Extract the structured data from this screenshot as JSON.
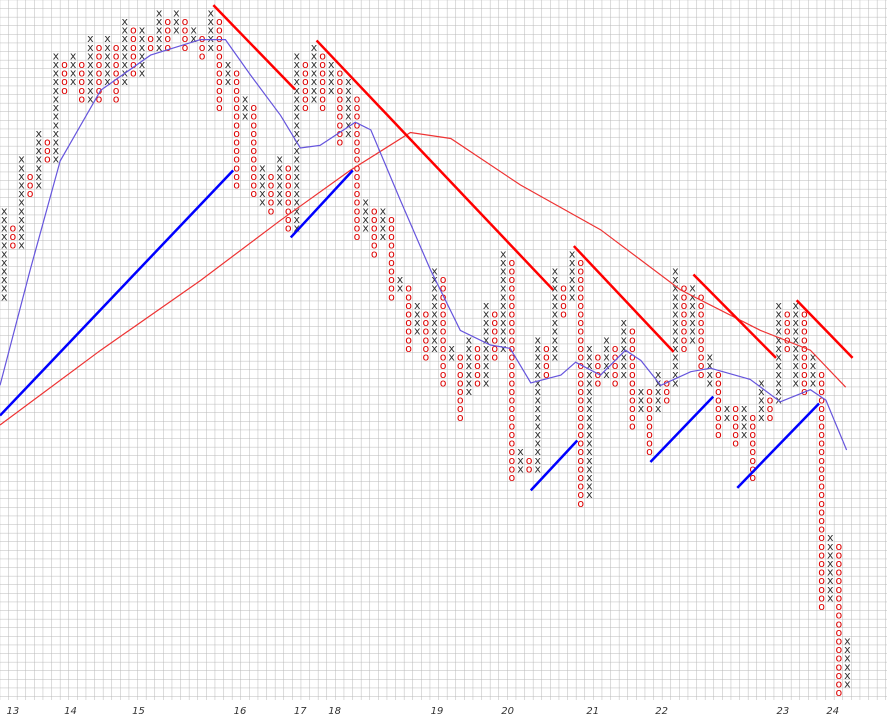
{
  "chart_data": {
    "type": "point-and-figure",
    "xlim": [
      -0.5,
      102.6
    ],
    "ylim": [
      0,
      84.5
    ],
    "symbol_colors": {
      "x": "#333333",
      "o": "#dd0000"
    },
    "columns": [
      {
        "kind": "x",
        "low": 50,
        "high": 60
      },
      {
        "kind": "o",
        "low": 56,
        "high": 58
      },
      {
        "kind": "x",
        "low": 56,
        "high": 66
      },
      {
        "kind": "o",
        "low": 62,
        "high": 64
      },
      {
        "kind": "x",
        "low": 63,
        "high": 69
      },
      {
        "kind": "o",
        "low": 66,
        "high": 68
      },
      {
        "kind": "x",
        "low": 66,
        "high": 78
      },
      {
        "kind": "o",
        "low": 74,
        "high": 77
      },
      {
        "kind": "x",
        "low": 75,
        "high": 78
      },
      {
        "kind": "o",
        "low": 73,
        "high": 77
      },
      {
        "kind": "x",
        "low": 73,
        "high": 80
      },
      {
        "kind": "o",
        "low": 73,
        "high": 79
      },
      {
        "kind": "x",
        "low": 75,
        "high": 80
      },
      {
        "kind": "o",
        "low": 73,
        "high": 79
      },
      {
        "kind": "x",
        "low": 75,
        "high": 82
      },
      {
        "kind": "o",
        "low": 76,
        "high": 81
      },
      {
        "kind": "x",
        "low": 76,
        "high": 81
      },
      {
        "kind": "o",
        "low": 79,
        "high": 80
      },
      {
        "kind": "x",
        "low": 79,
        "high": 83
      },
      {
        "kind": "o",
        "low": 79,
        "high": 82
      },
      {
        "kind": "x",
        "low": 81,
        "high": 83
      },
      {
        "kind": "o",
        "low": 79,
        "high": 82
      },
      {
        "kind": "x",
        "low": 80,
        "high": 81
      },
      {
        "kind": "o",
        "low": 78,
        "high": 80
      },
      {
        "kind": "x",
        "low": 79,
        "high": 83
      },
      {
        "kind": "o",
        "low": 72,
        "high": 82
      },
      {
        "kind": "x",
        "low": 75,
        "high": 77
      },
      {
        "kind": "o",
        "low": 63,
        "high": 76
      },
      {
        "kind": "x",
        "low": 71,
        "high": 73
      },
      {
        "kind": "o",
        "low": 62,
        "high": 72
      },
      {
        "kind": "x",
        "low": 61,
        "high": 65
      },
      {
        "kind": "o",
        "low": 60,
        "high": 64
      },
      {
        "kind": "x",
        "low": 61,
        "high": 66
      },
      {
        "kind": "o",
        "low": 58,
        "high": 65
      },
      {
        "kind": "x",
        "low": 58,
        "high": 78
      },
      {
        "kind": "o",
        "low": 72,
        "high": 77
      },
      {
        "kind": "x",
        "low": 73,
        "high": 79
      },
      {
        "kind": "o",
        "low": 72,
        "high": 78
      },
      {
        "kind": "x",
        "low": 74,
        "high": 77
      },
      {
        "kind": "o",
        "low": 68,
        "high": 76
      },
      {
        "kind": "x",
        "low": 69,
        "high": 75
      },
      {
        "kind": "o",
        "low": 57,
        "high": 73
      },
      {
        "kind": "x",
        "low": 58,
        "high": 61
      },
      {
        "kind": "o",
        "low": 55,
        "high": 60
      },
      {
        "kind": "x",
        "low": 57,
        "high": 60
      },
      {
        "kind": "o",
        "low": 50,
        "high": 59
      },
      {
        "kind": "x",
        "low": 51,
        "high": 52
      },
      {
        "kind": "o",
        "low": 44,
        "high": 51
      },
      {
        "kind": "x",
        "low": 46,
        "high": 49
      },
      {
        "kind": "o",
        "low": 43,
        "high": 48
      },
      {
        "kind": "x",
        "low": 44,
        "high": 53
      },
      {
        "kind": "o",
        "low": 40,
        "high": 52
      },
      {
        "kind": "x",
        "low": 43,
        "high": 44
      },
      {
        "kind": "o",
        "low": 36,
        "high": 43
      },
      {
        "kind": "x",
        "low": 39,
        "high": 45
      },
      {
        "kind": "o",
        "low": 40,
        "high": 44
      },
      {
        "kind": "x",
        "low": 40,
        "high": 49
      },
      {
        "kind": "o",
        "low": 43,
        "high": 48
      },
      {
        "kind": "x",
        "low": 44,
        "high": 55
      },
      {
        "kind": "o",
        "low": 29,
        "high": 54
      },
      {
        "kind": "x",
        "low": 30,
        "high": 32
      },
      {
        "kind": "o",
        "low": 30,
        "high": 31
      },
      {
        "kind": "x",
        "low": 30,
        "high": 45
      },
      {
        "kind": "o",
        "low": 41,
        "high": 44
      },
      {
        "kind": "x",
        "low": 43,
        "high": 53
      },
      {
        "kind": "o",
        "low": 48,
        "high": 51
      },
      {
        "kind": "x",
        "low": 50,
        "high": 55
      },
      {
        "kind": "o",
        "low": 26,
        "high": 54
      },
      {
        "kind": "x",
        "low": 27,
        "high": 44
      },
      {
        "kind": "o",
        "low": 40,
        "high": 43
      },
      {
        "kind": "x",
        "low": 41,
        "high": 45
      },
      {
        "kind": "o",
        "low": 40,
        "high": 44
      },
      {
        "kind": "x",
        "low": 41,
        "high": 47
      },
      {
        "kind": "o",
        "low": 35,
        "high": 46
      },
      {
        "kind": "x",
        "low": 37,
        "high": 39
      },
      {
        "kind": "o",
        "low": 32,
        "high": 39
      },
      {
        "kind": "x",
        "low": 37,
        "high": 41
      },
      {
        "kind": "o",
        "low": 38,
        "high": 40
      },
      {
        "kind": "x",
        "low": 40,
        "high": 53
      },
      {
        "kind": "o",
        "low": 44,
        "high": 51
      },
      {
        "kind": "x",
        "low": 45,
        "high": 51
      },
      {
        "kind": "o",
        "low": 41,
        "high": 50
      },
      {
        "kind": "x",
        "low": 40,
        "high": 43
      },
      {
        "kind": "o",
        "low": 34,
        "high": 41
      },
      {
        "kind": "x",
        "low": 36,
        "high": 37
      },
      {
        "kind": "o",
        "low": 33,
        "high": 37
      },
      {
        "kind": "x",
        "low": 34,
        "high": 37
      },
      {
        "kind": "o",
        "low": 29,
        "high": 36
      },
      {
        "kind": "x",
        "low": 36,
        "high": 40
      },
      {
        "kind": "o",
        "low": 36,
        "high": 38
      },
      {
        "kind": "x",
        "low": 38,
        "high": 49
      },
      {
        "kind": "o",
        "low": 44,
        "high": 48
      },
      {
        "kind": "x",
        "low": 40,
        "high": 49
      },
      {
        "kind": "o",
        "low": 39,
        "high": 48
      },
      {
        "kind": "x",
        "low": 40,
        "high": 43
      },
      {
        "kind": "o",
        "low": 14,
        "high": 41
      },
      {
        "kind": "x",
        "low": 15,
        "high": 22
      },
      {
        "kind": "o",
        "low": 4,
        "high": 21
      },
      {
        "kind": "x",
        "low": 5,
        "high": 10
      }
    ],
    "year_marks": [
      {
        "column": 1,
        "label": "13"
      },
      {
        "column": 7.7,
        "label": "14"
      },
      {
        "column": 15.6,
        "label": "15"
      },
      {
        "column": 27.4,
        "label": "16"
      },
      {
        "column": 34.4,
        "label": "17"
      },
      {
        "column": 38.4,
        "label": "18"
      },
      {
        "column": 50.3,
        "label": "19"
      },
      {
        "column": 58.5,
        "label": "20"
      },
      {
        "column": 68.4,
        "label": "21"
      },
      {
        "column": 76.4,
        "label": "22"
      },
      {
        "column": 90.5,
        "label": "23"
      },
      {
        "column": 96.3,
        "label": "24"
      }
    ],
    "trend_lines": [
      {
        "color": "#ff0000",
        "from": [
          24.3,
          83.9
        ],
        "to": [
          33.8,
          74.1
        ]
      },
      {
        "color": "#ff0000",
        "from": [
          36.3,
          79.8
        ],
        "to": [
          63.8,
          50.8
        ]
      },
      {
        "color": "#ff0000",
        "from": [
          66.2,
          55.9
        ],
        "to": [
          77.8,
          43.6
        ]
      },
      {
        "color": "#ff0000",
        "from": [
          80.1,
          52.6
        ],
        "to": [
          89.7,
          42.9
        ]
      },
      {
        "color": "#ff0000",
        "from": [
          92.1,
          49.6
        ],
        "to": [
          98.6,
          42.9
        ]
      },
      {
        "color": "#0000ff",
        "from": [
          -0.5,
          36.2
        ],
        "to": [
          26.6,
          64.7
        ]
      },
      {
        "color": "#0000ff",
        "from": [
          33.3,
          56.9
        ],
        "to": [
          40.5,
          64.7
        ]
      },
      {
        "color": "#0000ff",
        "from": [
          61.2,
          27.5
        ],
        "to": [
          66.6,
          33.3
        ]
      },
      {
        "color": "#0000ff",
        "from": [
          75.1,
          30.8
        ],
        "to": [
          82.4,
          38.4
        ]
      },
      {
        "color": "#0000ff",
        "from": [
          85.2,
          27.8
        ],
        "to": [
          94.7,
          37.6
        ]
      }
    ],
    "moving_averages": [
      {
        "color": "#ee3333",
        "x": [
          -0.5,
          11.2,
          22.8,
          32.1,
          40.2,
          47.2,
          51.9,
          60.0,
          69.3,
          78.6,
          87.9,
          93.7,
          97.8
        ],
        "values": [
          35.1,
          43.8,
          51.9,
          58.9,
          64.7,
          69.1,
          68.4,
          63.0,
          57.8,
          50.8,
          46.1,
          43.8,
          39.5
        ]
      },
      {
        "color": "#6655dd",
        "x": [
          -0.5,
          3.0,
          6.5,
          11.2,
          17.0,
          22.8,
          25.7,
          28.6,
          32.1,
          34.4,
          36.7,
          40.8,
          42.6,
          46.0,
          49.5,
          53.0,
          56.5,
          58.8,
          61.2,
          64.7,
          66.4,
          69.3,
          72.2,
          74.0,
          76.3,
          79.8,
          82.1,
          86.7,
          90.2,
          93.7,
          95.5,
          97.9
        ],
        "values": [
          39.7,
          53.1,
          65.8,
          74.0,
          78.1,
          79.9,
          79.9,
          75.8,
          71.1,
          67.3,
          67.6,
          70.3,
          69.4,
          61.3,
          53.2,
          46.1,
          44.4,
          44.0,
          40.0,
          40.9,
          42.4,
          40.9,
          43.8,
          42.6,
          39.7,
          41.3,
          41.7,
          40.4,
          37.8,
          39.2,
          38.0,
          32.2
        ]
      }
    ]
  }
}
